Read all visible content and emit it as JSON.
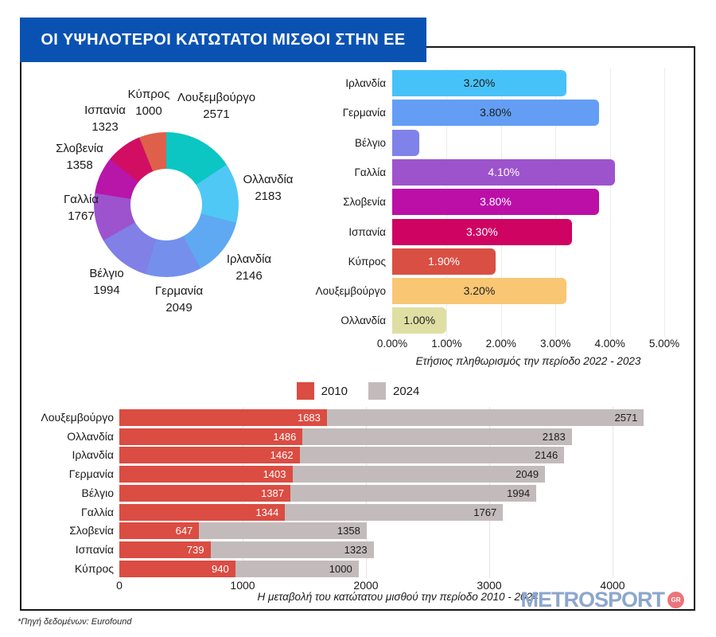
{
  "title": "ΟΙ ΥΨΗΛΟΤΕΡΟΙ ΚΑΤΩΤΑΤΟΙ ΜΙΣΘΟΙ ΣΤΗΝ ΕΕ",
  "footer": {
    "source_note": "*Πηγή δεδομένων: Eurofound"
  },
  "logo": {
    "text": "METROSPORT",
    "badge": "GR"
  },
  "chart_data": [
    {
      "type": "pie",
      "name": "minimum-wage-donut",
      "categories": [
        "Λουξεμβούργο",
        "Ολλανδία",
        "Ιρλανδία",
        "Γερμανία",
        "Βέλγιο",
        "Γαλλία",
        "Σλοβενία",
        "Ισπανία",
        "Κύπρος"
      ],
      "values": [
        2571,
        2183,
        2146,
        2049,
        1994,
        1767,
        1358,
        1323,
        1000
      ],
      "value_labels": [
        "2571",
        "2183",
        "2146",
        "2049",
        "1994",
        "1767",
        "1358",
        "1323",
        "1000"
      ],
      "colors": [
        "#0bc6c3",
        "#4fc8f5",
        "#5ea9f1",
        "#7590ec",
        "#8080e6",
        "#9c53cd",
        "#b815a9",
        "#d20e63",
        "#de5f4a"
      ]
    },
    {
      "type": "bar",
      "name": "annual-inflation",
      "title": "Ετήσιος πληθωρισμός  την περίοδο 2022 - 2023",
      "categories": [
        "Ιρλανδία",
        "Γερμανία",
        "Βέλγιο",
        "Γαλλία",
        "Σλοβενία",
        "Ισπανία",
        "Κύπρος",
        "Λουξεμβούργο",
        "Ολλανδία"
      ],
      "values": [
        3.2,
        3.8,
        0.5,
        4.1,
        3.8,
        3.3,
        1.9,
        3.2,
        1.0
      ],
      "value_labels": [
        "3.20%",
        "3.80%",
        "",
        "4.10%",
        "3.80%",
        "3.30%",
        "1.90%",
        "3.20%",
        "1.00%"
      ],
      "colors": [
        "#47c2f9",
        "#639ef4",
        "#7f82e8",
        "#9d53cc",
        "#bb0fa8",
        "#ce0362",
        "#d94f43",
        "#f9c674",
        "#dfdfa4"
      ],
      "label_colors": [
        "#1d1d1d",
        "#1d1d1d",
        "#1d1d1d",
        "#ffffff",
        "#ffffff",
        "#ffffff",
        "#ffffff",
        "#1d1d1d",
        "#1d1d1d"
      ],
      "x_ticks": [
        "0.00%",
        "1.00%",
        "2.00%",
        "3.00%",
        "4.00%",
        "5.00%"
      ],
      "xlim": [
        0,
        5
      ],
      "grid": true
    },
    {
      "type": "bar",
      "name": "minimum-wage-change",
      "title": "Η μεταβολή του κατώτατου μισθού την περίοδο 2010 - 2024",
      "stacked": true,
      "categories": [
        "Λουξεμβούργο",
        "Ολλανδία",
        "Ιρλανδία",
        "Γερμανία",
        "Βέλγιο",
        "Γαλλία",
        "Σλοβενία",
        "Ισπανία",
        "Κύπρος"
      ],
      "series": [
        {
          "name": "2010",
          "color": "#db4c42",
          "label_color": "#ffffff",
          "values": [
            1683,
            1486,
            1462,
            1403,
            1387,
            1344,
            647,
            739,
            940
          ]
        },
        {
          "name": "2024",
          "color": "#c3bbbb",
          "label_color": "#1d1d1d",
          "values": [
            2571,
            2183,
            2146,
            2049,
            1994,
            1767,
            1358,
            1323,
            1000
          ]
        }
      ],
      "x_ticks": [
        "0",
        "1000",
        "2000",
        "3000",
        "4000"
      ],
      "xlim": [
        0,
        4670
      ],
      "grid": true
    }
  ]
}
